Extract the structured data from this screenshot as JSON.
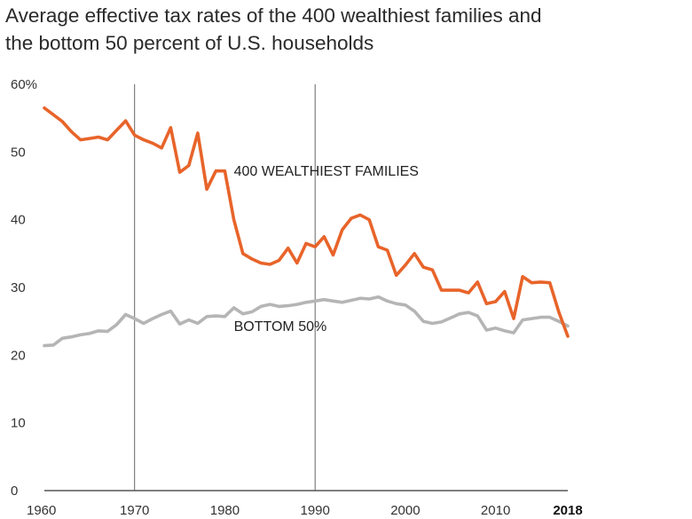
{
  "chart_data": {
    "type": "line",
    "title_lines": [
      "Average effective tax rates of the 400 wealthiest families and",
      "the bottom 50 percent of U.S. households"
    ],
    "xlim": [
      1960,
      2018
    ],
    "ylim": [
      0,
      60
    ],
    "y_ticks": [
      {
        "value": 0,
        "label": "0"
      },
      {
        "value": 10,
        "label": "10"
      },
      {
        "value": 20,
        "label": "20"
      },
      {
        "value": 30,
        "label": "30"
      },
      {
        "value": 40,
        "label": "40"
      },
      {
        "value": 50,
        "label": "50"
      },
      {
        "value": 60,
        "label": "60%"
      }
    ],
    "x_ticks": [
      {
        "value": 1960,
        "label": "1960",
        "bold": false
      },
      {
        "value": 1970,
        "label": "1970",
        "bold": false
      },
      {
        "value": 1980,
        "label": "1980",
        "bold": false
      },
      {
        "value": 1990,
        "label": "1990",
        "bold": false
      },
      {
        "value": 2000,
        "label": "2000",
        "bold": false
      },
      {
        "value": 2010,
        "label": "2010",
        "bold": false
      },
      {
        "value": 2018,
        "label": "2018",
        "bold": true
      }
    ],
    "vertical_gridlines": [
      1970,
      1990
    ],
    "series": [
      {
        "name": "400 WEALTHIEST FAMILIES",
        "color": "#e8642a",
        "x": [
          1960,
          1961,
          1962,
          1963,
          1964,
          1965,
          1966,
          1967,
          1968,
          1969,
          1970,
          1971,
          1972,
          1973,
          1974,
          1975,
          1976,
          1977,
          1978,
          1979,
          1980,
          1981,
          1982,
          1983,
          1984,
          1985,
          1986,
          1987,
          1988,
          1989,
          1990,
          1991,
          1992,
          1993,
          1994,
          1995,
          1996,
          1997,
          1998,
          1999,
          2000,
          2001,
          2002,
          2003,
          2004,
          2005,
          2006,
          2007,
          2008,
          2009,
          2010,
          2011,
          2012,
          2013,
          2014,
          2015,
          2016,
          2017,
          2018
        ],
        "values": [
          56.5,
          55.5,
          54.5,
          53,
          51.8,
          52,
          52.2,
          51.8,
          53.2,
          54.6,
          52.5,
          51.8,
          51.3,
          50.6,
          53.6,
          47,
          48,
          52.8,
          44.5,
          47.2,
          47.2,
          40,
          35,
          34.2,
          33.6,
          33.4,
          34,
          35.8,
          33.6,
          36.5,
          36,
          37.5,
          34.8,
          38.5,
          40.2,
          40.7,
          40,
          36,
          35.5,
          31.8,
          33.3,
          35,
          33,
          32.6,
          29.6,
          29.6,
          29.6,
          29.2,
          30.8,
          27.6,
          27.9,
          29.4,
          25.4,
          31.6,
          30.7,
          30.8,
          30.7,
          26.4,
          22.8
        ],
        "label_anchor": {
          "x": 1981,
          "y": 46.5
        }
      },
      {
        "name": "BOTTOM 50%",
        "color": "#b5b5b5",
        "x": [
          1960,
          1961,
          1962,
          1963,
          1964,
          1965,
          1966,
          1967,
          1968,
          1969,
          1970,
          1971,
          1972,
          1973,
          1974,
          1975,
          1976,
          1977,
          1978,
          1979,
          1980,
          1981,
          1982,
          1983,
          1984,
          1985,
          1986,
          1987,
          1988,
          1989,
          1990,
          1991,
          1992,
          1993,
          1994,
          1995,
          1996,
          1997,
          1998,
          1999,
          2000,
          2001,
          2002,
          2003,
          2004,
          2005,
          2006,
          2007,
          2008,
          2009,
          2010,
          2011,
          2012,
          2013,
          2014,
          2015,
          2016,
          2017,
          2018
        ],
        "values": [
          21.4,
          21.5,
          22.5,
          22.7,
          23,
          23.2,
          23.6,
          23.5,
          24.5,
          26,
          25.4,
          24.7,
          25.4,
          26,
          26.5,
          24.6,
          25.2,
          24.7,
          25.7,
          25.8,
          25.7,
          27,
          26.1,
          26.4,
          27.2,
          27.5,
          27.2,
          27.3,
          27.5,
          27.8,
          28,
          28.2,
          28,
          27.8,
          28.1,
          28.4,
          28.3,
          28.6,
          28,
          27.6,
          27.4,
          26.5,
          25,
          24.7,
          24.9,
          25.5,
          26.1,
          26.3,
          25.8,
          23.7,
          24,
          23.6,
          23.3,
          25.2,
          25.4,
          25.6,
          25.6,
          25,
          24.3
        ],
        "label_anchor": {
          "x": 1981,
          "y": 23.6
        }
      }
    ]
  }
}
